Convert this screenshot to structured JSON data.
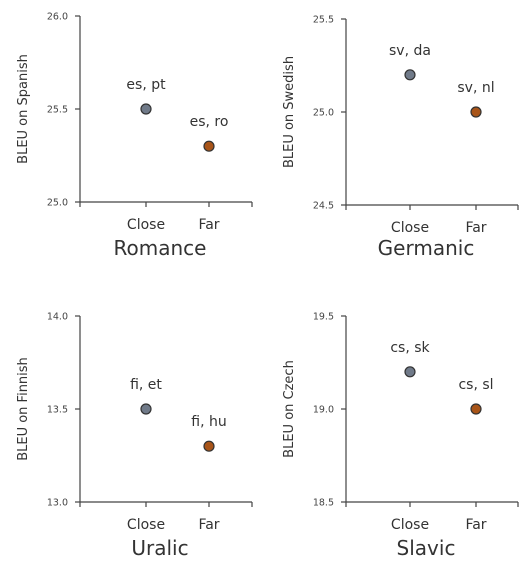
{
  "chart_data": [
    {
      "type": "scatter",
      "title": "Romance",
      "ylabel": "BLEU on Spanish",
      "categories": [
        "Close",
        "Far"
      ],
      "yticks": [
        "25.0",
        "25.5",
        "26.0"
      ],
      "ylim": [
        25.0,
        26.0
      ],
      "points": [
        {
          "category": "Close",
          "value": 25.5,
          "label": "es, pt",
          "color": "#707a89"
        },
        {
          "category": "Far",
          "value": 25.3,
          "label": "es, ro",
          "color": "#a85418"
        }
      ]
    },
    {
      "type": "scatter",
      "title": "Germanic",
      "ylabel": "BLEU on Swedish",
      "categories": [
        "Close",
        "Far"
      ],
      "yticks": [
        "24.5",
        "25.0",
        "25.5"
      ],
      "ylim": [
        24.5,
        25.5
      ],
      "points": [
        {
          "category": "Close",
          "value": 25.2,
          "label": "sv, da",
          "color": "#707a89"
        },
        {
          "category": "Far",
          "value": 25.0,
          "label": "sv, nl",
          "color": "#a85418"
        }
      ]
    },
    {
      "type": "scatter",
      "title": "Uralic",
      "ylabel": "BLEU on Finnish",
      "categories": [
        "Close",
        "Far"
      ],
      "yticks": [
        "13.0",
        "13.5",
        "14.0"
      ],
      "ylim": [
        13.0,
        14.0
      ],
      "points": [
        {
          "category": "Close",
          "value": 13.5,
          "label": "fi, et",
          "color": "#707a89"
        },
        {
          "category": "Far",
          "value": 13.3,
          "label": "fi, hu",
          "color": "#a85418"
        }
      ]
    },
    {
      "type": "scatter",
      "title": "Slavic",
      "ylabel": "BLEU on Czech",
      "categories": [
        "Close",
        "Far"
      ],
      "yticks": [
        "18.5",
        "19.0",
        "19.5"
      ],
      "ylim": [
        18.5,
        19.5
      ],
      "points": [
        {
          "category": "Close",
          "value": 19.2,
          "label": "cs, sk",
          "color": "#707a89"
        },
        {
          "category": "Far",
          "value": 19.0,
          "label": "cs, sl",
          "color": "#a85418"
        }
      ]
    }
  ]
}
